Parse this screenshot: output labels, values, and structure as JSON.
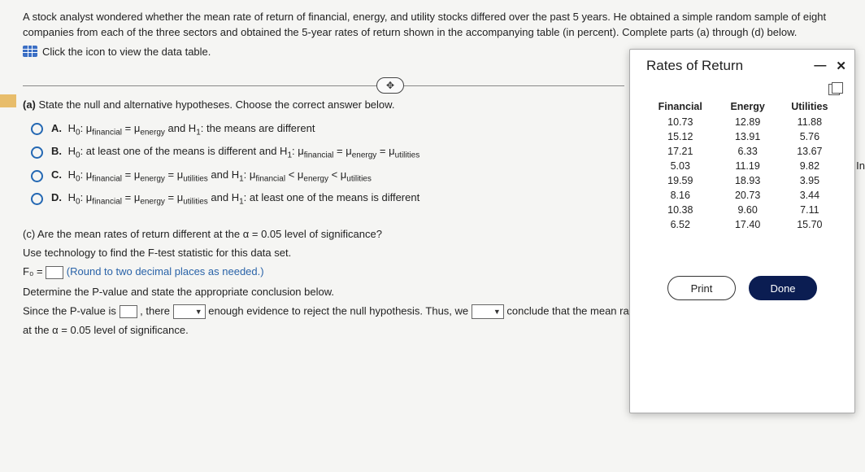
{
  "problem": {
    "intro": "A stock analyst wondered whether the mean rate of return of financial, energy, and utility stocks differed over the past 5 years. He obtained a simple random sample of eight companies from each of the three sectors and obtained the 5-year rates of return shown in the accompanying table (in percent). Complete parts (a) through (d) below.",
    "view_table": "Click the icon to view the data table."
  },
  "part_a": {
    "prompt_label": "(a)",
    "prompt": " State the null and alternative hypotheses. Choose the correct answer below.",
    "options": {
      "A": {
        "letter": "A.",
        "text": "H₀: μfinancial = μenergy and H₁: the means are different"
      },
      "B": {
        "letter": "B.",
        "text": "H₀: at least one of the means is different and H₁: μfinancial = μenergy = μutilities"
      },
      "C": {
        "letter": "C.",
        "text": "H₀: μfinancial = μenergy = μutilities and H₁: μfinancial < μenergy < μutilities"
      },
      "D": {
        "letter": "D.",
        "text": "H₀: μfinancial = μenergy = μutilities and H₁: at least one of the means is different"
      }
    }
  },
  "part_c": {
    "q1": "(c) Are the mean rates of return different at the α = 0.05 level of significance?",
    "q2": "Use technology to find the F-test statistic for this data set.",
    "f0_label": "F₀ = ",
    "f0_hint": "(Round to two decimal places as needed.)",
    "q3": "Determine the P-value and state the appropriate conclusion below.",
    "concl_1a": "Since the P-value is ",
    "concl_1b": ", there ",
    "concl_1c": " enough evidence to reject the null hypothesis. Thus, we ",
    "concl_1d": " conclude that the mean rates of return are different",
    "concl_2": "at the α = 0.05 level of significance."
  },
  "modal": {
    "title": "Rates of Return",
    "minimize": "—",
    "close": "✕",
    "print": "Print",
    "done": "Done",
    "table": {
      "columns": [
        "Financial",
        "Energy",
        "Utilities"
      ],
      "rows": [
        [
          "10.73",
          "12.89",
          "11.88"
        ],
        [
          "15.12",
          "13.91",
          "5.76"
        ],
        [
          "17.21",
          "6.33",
          "13.67"
        ],
        [
          "5.03",
          "11.19",
          "9.82"
        ],
        [
          "19.59",
          "18.93",
          "3.95"
        ],
        [
          "8.16",
          "20.73",
          "3.44"
        ],
        [
          "10.38",
          "9.60",
          "7.11"
        ],
        [
          "6.52",
          "17.40",
          "15.70"
        ]
      ],
      "col_colors": {
        "header": "#000",
        "cell": "#222"
      },
      "background": "#ffffff",
      "fontsize": 12.5
    }
  },
  "side_label": "In"
}
